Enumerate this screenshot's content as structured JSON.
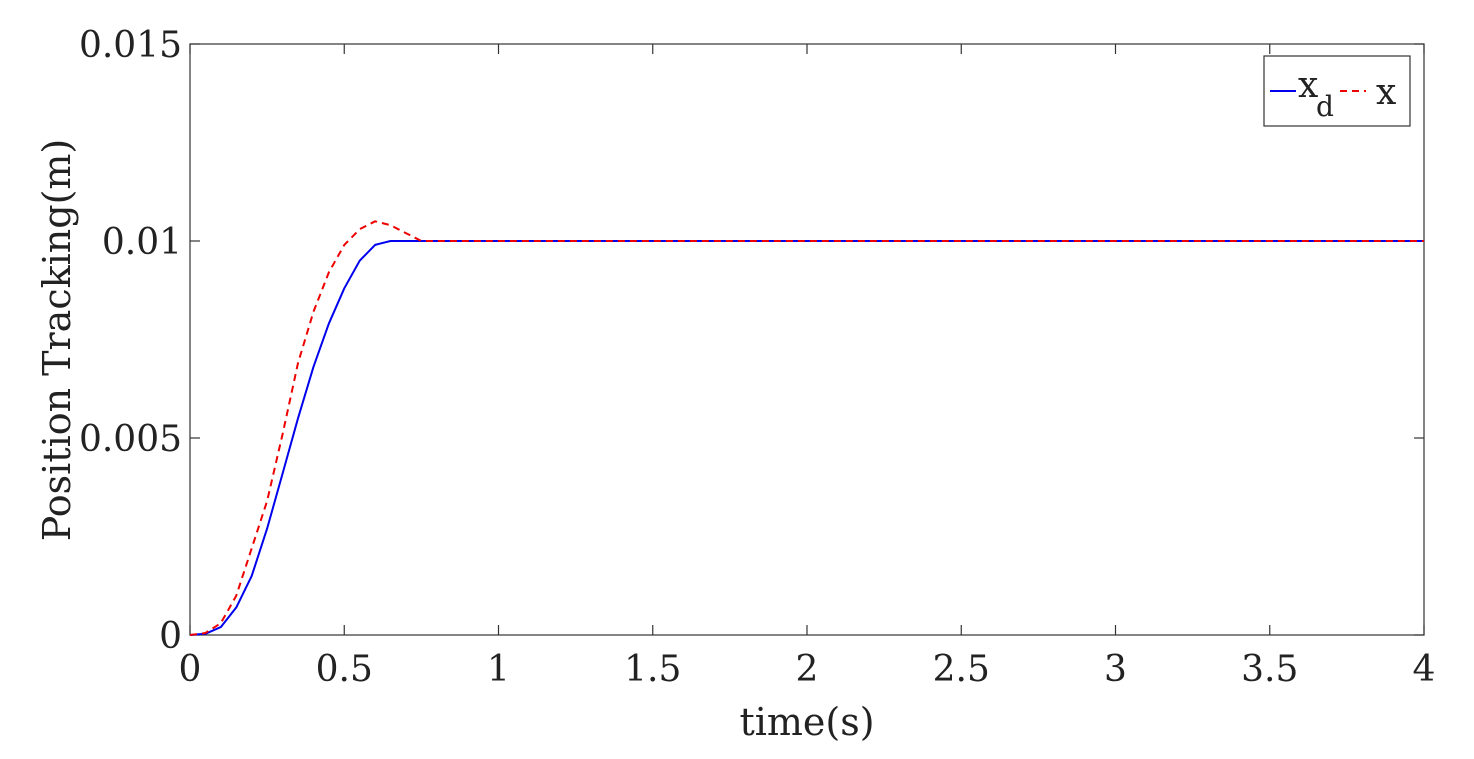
{
  "chart_data": {
    "type": "line",
    "title": "",
    "xlabel": "time(s)",
    "ylabel": "Position Tracking(m)",
    "xlim": [
      0,
      4
    ],
    "ylim": [
      0,
      0.015
    ],
    "x_ticks": [
      0,
      0.5,
      1,
      1.5,
      2,
      2.5,
      3,
      3.5,
      4
    ],
    "x_tick_labels": [
      "0",
      "0.5",
      "1",
      "1.5",
      "2",
      "2.5",
      "3",
      "3.5",
      "4"
    ],
    "y_ticks": [
      0,
      0.005,
      0.01,
      0.015
    ],
    "y_tick_labels": [
      "0",
      "0.005",
      "0.01",
      "0.015"
    ],
    "grid": false,
    "legend_position": "top-right",
    "series": [
      {
        "name": "x",
        "name_subscript": "d",
        "color": "#0000ee",
        "style": "solid",
        "x": [
          0,
          0.05,
          0.1,
          0.15,
          0.2,
          0.25,
          0.3,
          0.35,
          0.4,
          0.45,
          0.5,
          0.55,
          0.6,
          0.65,
          0.7,
          0.8,
          1,
          1.5,
          2,
          2.5,
          3,
          3.5,
          4
        ],
        "y": [
          0,
          3e-05,
          0.0002,
          0.0007,
          0.0015,
          0.0027,
          0.0041,
          0.0055,
          0.0068,
          0.0079,
          0.0088,
          0.0095,
          0.0099,
          0.01,
          0.01,
          0.01,
          0.01,
          0.01,
          0.01,
          0.01,
          0.01,
          0.01,
          0.01
        ]
      },
      {
        "name": "x",
        "name_subscript": "",
        "color": "#ee0000",
        "style": "dashed",
        "x": [
          0,
          0.05,
          0.1,
          0.15,
          0.2,
          0.25,
          0.3,
          0.35,
          0.4,
          0.45,
          0.5,
          0.55,
          0.6,
          0.65,
          0.7,
          0.75,
          0.8,
          1,
          1.5,
          2,
          2.5,
          3,
          3.5,
          4
        ],
        "y": [
          0,
          5e-05,
          0.0003,
          0.001,
          0.0022,
          0.0034,
          0.0051,
          0.0069,
          0.0082,
          0.0092,
          0.0099,
          0.0103,
          0.0105,
          0.0104,
          0.0102,
          0.01,
          0.01,
          0.01,
          0.01,
          0.01,
          0.01,
          0.01,
          0.01,
          0.01
        ]
      }
    ]
  }
}
